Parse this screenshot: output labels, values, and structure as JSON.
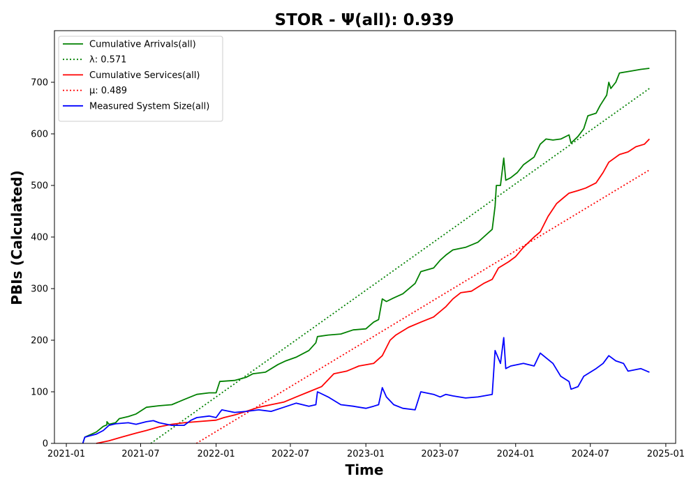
{
  "chart_data": {
    "type": "line",
    "title": "STOR -  Ψ(all): 0.939",
    "xlabel": "Time",
    "ylabel": "PBIs (Calculated)",
    "xlim": [
      "2020-12-03",
      "2025-01-25"
    ],
    "ylim": [
      0,
      800
    ],
    "x_ticks": [
      "2021-01",
      "2021-07",
      "2022-01",
      "2022-07",
      "2023-01",
      "2023-07",
      "2024-01",
      "2024-07",
      "2025-01"
    ],
    "y_ticks": [
      0,
      100,
      200,
      300,
      400,
      500,
      600,
      700
    ],
    "grid": false,
    "legend_position": "top-left",
    "series": [
      {
        "name": "Cumulative Arrivals(all)",
        "color": "#008000",
        "style": "solid",
        "points": [
          [
            "2021-02-10",
            0
          ],
          [
            "2021-02-15",
            12
          ],
          [
            "2021-03-01",
            17
          ],
          [
            "2021-03-15",
            22
          ],
          [
            "2021-04-01",
            33
          ],
          [
            "2021-04-10",
            36
          ],
          [
            "2021-04-10",
            42
          ],
          [
            "2021-04-15",
            37
          ],
          [
            "2021-05-01",
            40
          ],
          [
            "2021-05-10",
            48
          ],
          [
            "2021-06-01",
            52
          ],
          [
            "2021-06-20",
            57
          ],
          [
            "2021-07-15",
            70
          ],
          [
            "2021-08-15",
            73
          ],
          [
            "2021-09-15",
            75
          ],
          [
            "2021-10-15",
            85
          ],
          [
            "2021-11-15",
            95
          ],
          [
            "2021-12-15",
            98
          ],
          [
            "2022-01-01",
            98
          ],
          [
            "2022-01-10",
            120
          ],
          [
            "2022-02-15",
            122
          ],
          [
            "2022-03-15",
            128
          ],
          [
            "2022-04-01",
            135
          ],
          [
            "2022-05-01",
            138
          ],
          [
            "2022-06-01",
            153
          ],
          [
            "2022-06-20",
            160
          ],
          [
            "2022-07-15",
            167
          ],
          [
            "2022-08-15",
            180
          ],
          [
            "2022-09-01",
            195
          ],
          [
            "2022-09-05",
            207
          ],
          [
            "2022-10-01",
            210
          ],
          [
            "2022-11-01",
            212
          ],
          [
            "2022-12-01",
            220
          ],
          [
            "2023-01-01",
            222
          ],
          [
            "2023-01-20",
            235
          ],
          [
            "2023-02-01",
            240
          ],
          [
            "2023-02-10",
            280
          ],
          [
            "2023-02-20",
            275
          ],
          [
            "2023-03-10",
            282
          ],
          [
            "2023-04-01",
            290
          ],
          [
            "2023-05-01",
            310
          ],
          [
            "2023-05-15",
            333
          ],
          [
            "2023-06-15",
            340
          ],
          [
            "2023-07-01",
            355
          ],
          [
            "2023-07-15",
            365
          ],
          [
            "2023-08-01",
            375
          ],
          [
            "2023-09-01",
            380
          ],
          [
            "2023-10-01",
            390
          ],
          [
            "2023-10-15",
            400
          ],
          [
            "2023-11-05",
            415
          ],
          [
            "2023-11-12",
            460
          ],
          [
            "2023-11-15",
            500
          ],
          [
            "2023-11-25",
            500
          ],
          [
            "2023-12-03",
            553
          ],
          [
            "2023-12-08",
            510
          ],
          [
            "2023-12-20",
            515
          ],
          [
            "2024-01-05",
            525
          ],
          [
            "2024-01-20",
            540
          ],
          [
            "2024-02-15",
            555
          ],
          [
            "2024-03-01",
            580
          ],
          [
            "2024-03-15",
            590
          ],
          [
            "2024-04-01",
            588
          ],
          [
            "2024-04-20",
            590
          ],
          [
            "2024-05-10",
            598
          ],
          [
            "2024-05-15",
            582
          ],
          [
            "2024-06-01",
            595
          ],
          [
            "2024-06-15",
            610
          ],
          [
            "2024-06-25",
            635
          ],
          [
            "2024-07-15",
            640
          ],
          [
            "2024-07-25",
            655
          ],
          [
            "2024-08-10",
            675
          ],
          [
            "2024-08-15",
            700
          ],
          [
            "2024-08-20",
            688
          ],
          [
            "2024-09-01",
            700
          ],
          [
            "2024-09-10",
            718
          ],
          [
            "2024-10-10",
            722
          ],
          [
            "2024-11-01",
            725
          ],
          [
            "2024-11-22",
            727
          ]
        ]
      },
      {
        "name": "λ: 0.571",
        "color": "#008000",
        "style": "dotted",
        "points": [
          [
            "2021-07-26",
            0
          ],
          [
            "2024-11-22",
            688
          ]
        ]
      },
      {
        "name": "Cumulative Services(all)",
        "color": "#ff0000",
        "style": "solid",
        "points": [
          [
            "2021-03-15",
            0
          ],
          [
            "2021-04-15",
            5
          ],
          [
            "2021-05-15",
            12
          ],
          [
            "2021-06-20",
            20
          ],
          [
            "2021-07-15",
            25
          ],
          [
            "2021-08-15",
            32
          ],
          [
            "2021-09-15",
            37
          ],
          [
            "2021-10-15",
            40
          ],
          [
            "2021-11-15",
            42
          ],
          [
            "2022-01-01",
            45
          ],
          [
            "2022-01-20",
            50
          ],
          [
            "2022-02-15",
            55
          ],
          [
            "2022-03-15",
            62
          ],
          [
            "2022-04-15",
            70
          ],
          [
            "2022-05-15",
            75
          ],
          [
            "2022-06-15",
            80
          ],
          [
            "2022-07-15",
            90
          ],
          [
            "2022-08-15",
            100
          ],
          [
            "2022-09-15",
            110
          ],
          [
            "2022-10-15",
            135
          ],
          [
            "2022-11-15",
            140
          ],
          [
            "2022-12-15",
            150
          ],
          [
            "2023-01-20",
            155
          ],
          [
            "2023-02-10",
            170
          ],
          [
            "2023-03-01",
            200
          ],
          [
            "2023-03-15",
            210
          ],
          [
            "2023-04-15",
            225
          ],
          [
            "2023-05-15",
            235
          ],
          [
            "2023-06-15",
            245
          ],
          [
            "2023-07-15",
            265
          ],
          [
            "2023-08-01",
            280
          ],
          [
            "2023-08-20",
            292
          ],
          [
            "2023-09-15",
            295
          ],
          [
            "2023-10-15",
            310
          ],
          [
            "2023-11-05",
            318
          ],
          [
            "2023-11-20",
            340
          ],
          [
            "2023-12-15",
            352
          ],
          [
            "2024-01-01",
            362
          ],
          [
            "2024-01-20",
            380
          ],
          [
            "2024-02-15",
            400
          ],
          [
            "2024-03-01",
            410
          ],
          [
            "2024-03-20",
            440
          ],
          [
            "2024-04-10",
            465
          ],
          [
            "2024-04-25",
            475
          ],
          [
            "2024-05-10",
            485
          ],
          [
            "2024-06-01",
            490
          ],
          [
            "2024-06-20",
            495
          ],
          [
            "2024-07-15",
            505
          ],
          [
            "2024-08-01",
            525
          ],
          [
            "2024-08-15",
            545
          ],
          [
            "2024-09-10",
            560
          ],
          [
            "2024-10-01",
            565
          ],
          [
            "2024-10-20",
            575
          ],
          [
            "2024-11-10",
            580
          ],
          [
            "2024-11-22",
            590
          ]
        ]
      },
      {
        "name": "μ: 0.489",
        "color": "#ff0000",
        "style": "dotted",
        "points": [
          [
            "2021-11-14",
            0
          ],
          [
            "2024-11-22",
            530
          ]
        ]
      },
      {
        "name": "Measured System Size(all)",
        "color": "#0000ff",
        "style": "solid",
        "points": [
          [
            "2021-02-10",
            0
          ],
          [
            "2021-02-15",
            12
          ],
          [
            "2021-03-01",
            15
          ],
          [
            "2021-03-15",
            18
          ],
          [
            "2021-04-01",
            25
          ],
          [
            "2021-04-15",
            35
          ],
          [
            "2021-05-01",
            38
          ],
          [
            "2021-06-01",
            40
          ],
          [
            "2021-06-20",
            37
          ],
          [
            "2021-07-15",
            42
          ],
          [
            "2021-08-01",
            44
          ],
          [
            "2021-08-15",
            40
          ],
          [
            "2021-09-15",
            35
          ],
          [
            "2021-10-15",
            35
          ],
          [
            "2021-11-01",
            45
          ],
          [
            "2021-11-15",
            50
          ],
          [
            "2021-12-15",
            53
          ],
          [
            "2022-01-01",
            50
          ],
          [
            "2022-01-10",
            60
          ],
          [
            "2022-01-15",
            65
          ],
          [
            "2022-02-15",
            60
          ],
          [
            "2022-03-15",
            62
          ],
          [
            "2022-04-15",
            65
          ],
          [
            "2022-05-15",
            62
          ],
          [
            "2022-06-15",
            70
          ],
          [
            "2022-07-15",
            78
          ],
          [
            "2022-08-15",
            72
          ],
          [
            "2022-09-01",
            75
          ],
          [
            "2022-09-05",
            100
          ],
          [
            "2022-10-01",
            90
          ],
          [
            "2022-11-01",
            75
          ],
          [
            "2022-12-01",
            72
          ],
          [
            "2023-01-01",
            68
          ],
          [
            "2023-01-20",
            72
          ],
          [
            "2023-02-01",
            75
          ],
          [
            "2023-02-10",
            108
          ],
          [
            "2023-02-20",
            90
          ],
          [
            "2023-03-10",
            75
          ],
          [
            "2023-04-01",
            68
          ],
          [
            "2023-05-01",
            65
          ],
          [
            "2023-05-15",
            100
          ],
          [
            "2023-06-15",
            95
          ],
          [
            "2023-07-01",
            90
          ],
          [
            "2023-07-15",
            95
          ],
          [
            "2023-08-01",
            92
          ],
          [
            "2023-09-01",
            88
          ],
          [
            "2023-10-01",
            90
          ],
          [
            "2023-11-05",
            95
          ],
          [
            "2023-11-12",
            180
          ],
          [
            "2023-11-25",
            155
          ],
          [
            "2023-12-03",
            205
          ],
          [
            "2023-12-08",
            145
          ],
          [
            "2023-12-20",
            150
          ],
          [
            "2024-01-20",
            155
          ],
          [
            "2024-02-15",
            150
          ],
          [
            "2024-03-01",
            175
          ],
          [
            "2024-04-01",
            155
          ],
          [
            "2024-04-20",
            130
          ],
          [
            "2024-05-10",
            120
          ],
          [
            "2024-05-15",
            105
          ],
          [
            "2024-06-01",
            110
          ],
          [
            "2024-06-15",
            130
          ],
          [
            "2024-07-15",
            145
          ],
          [
            "2024-08-01",
            155
          ],
          [
            "2024-08-15",
            170
          ],
          [
            "2024-09-01",
            160
          ],
          [
            "2024-09-20",
            155
          ],
          [
            "2024-10-01",
            140
          ],
          [
            "2024-11-01",
            145
          ],
          [
            "2024-11-22",
            138
          ]
        ]
      }
    ]
  }
}
